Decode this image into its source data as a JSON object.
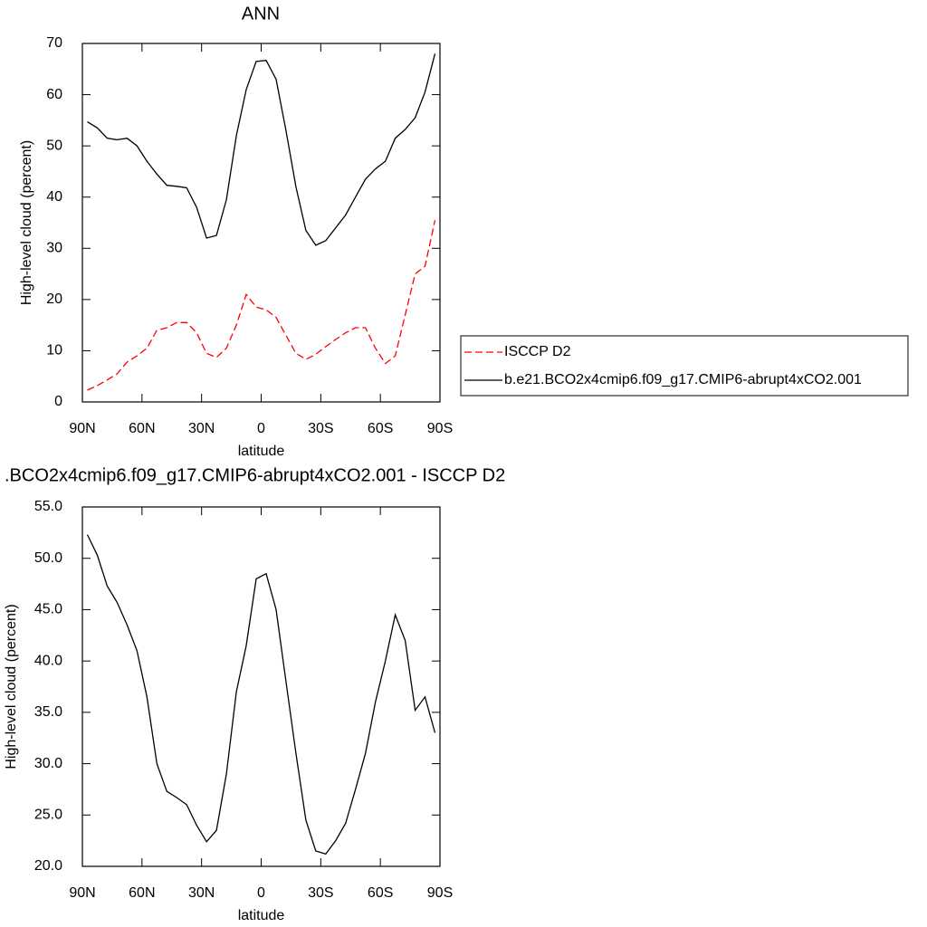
{
  "chart_data": [
    {
      "type": "line",
      "title": "ANN",
      "xlabel": "latitude",
      "ylabel": "High-level cloud (percent)",
      "x": [
        87.5,
        82.5,
        77.5,
        72.5,
        67.5,
        62.5,
        57.5,
        52.5,
        47.5,
        42.5,
        37.5,
        32.5,
        27.5,
        22.5,
        17.5,
        12.5,
        7.5,
        2.5,
        -2.5,
        -7.5,
        -12.5,
        -17.5,
        -22.5,
        -27.5,
        -32.5,
        -37.5,
        -42.5,
        -47.5,
        -52.5,
        -57.5,
        -62.5,
        -67.5,
        -72.5,
        -77.5,
        -82.5,
        -87.5
      ],
      "series": [
        {
          "name": "ISCCP D2",
          "color": "#ff0000",
          "line_style": "dashed",
          "values": [
            2.3,
            3.2,
            4.3,
            5.5,
            7.8,
            9,
            10.5,
            14,
            14.5,
            15.5,
            15.5,
            13.5,
            9.5,
            8.7,
            10.5,
            15,
            21,
            18.5,
            18,
            16.5,
            13,
            9.5,
            8.3,
            9.3,
            10.8,
            12.2,
            13.5,
            14.5,
            14.5,
            10.5,
            7.5,
            9,
            17,
            25,
            26.5,
            35.5
          ]
        },
        {
          "name": "b.e21.BCO2x4cmip6.f09_g17.CMIP6-abrupt4xCO2.001",
          "color": "#000000",
          "line_style": "solid",
          "values": [
            54.7,
            53.5,
            51.5,
            51.2,
            51.5,
            50,
            47,
            44.5,
            42.3,
            42.1,
            41.8,
            38,
            32,
            32.5,
            39.5,
            52,
            61,
            66.5,
            66.7,
            63,
            53,
            42,
            33.5,
            30.6,
            31.5,
            34,
            36.5,
            40,
            43.5,
            45.5,
            47,
            51.5,
            53.2,
            55.5,
            60.5,
            68
          ]
        }
      ],
      "xlim": [
        90,
        -90
      ],
      "xticks": [
        {
          "value": 90,
          "label": "90N"
        },
        {
          "value": 60,
          "label": "60N"
        },
        {
          "value": 30,
          "label": "30N"
        },
        0,
        {
          "value": -30,
          "label": "30S"
        },
        {
          "value": -60,
          "label": "60S"
        },
        {
          "value": -90,
          "label": "90S"
        }
      ],
      "ylim": [
        0,
        70
      ],
      "yticks": [
        0,
        10,
        20,
        30,
        40,
        50,
        60,
        70
      ],
      "grid": false,
      "legend": "right"
    },
    {
      "type": "line",
      "title": ".BCO2x4cmip6.f09_g17.CMIP6-abrupt4xCO2.001 - ISCCP D2",
      "xlabel": "latitude",
      "ylabel": "High-level cloud (percent)",
      "x": [
        87.5,
        82.5,
        77.5,
        72.5,
        67.5,
        62.5,
        57.5,
        52.5,
        47.5,
        42.5,
        37.5,
        32.5,
        27.5,
        22.5,
        17.5,
        12.5,
        7.5,
        2.5,
        -2.5,
        -7.5,
        -12.5,
        -17.5,
        -22.5,
        -27.5,
        -32.5,
        -37.5,
        -42.5,
        -47.5,
        -52.5,
        -57.5,
        -62.5,
        -67.5,
        -72.5,
        -77.5,
        -82.5,
        -87.5
      ],
      "color": "#000000",
      "values": [
        52.3,
        50.3,
        47.3,
        45.7,
        43.5,
        41,
        36.5,
        30,
        27.3,
        26.7,
        26,
        24,
        22.4,
        23.5,
        29,
        37,
        41.5,
        48,
        48.5,
        45,
        38,
        31,
        24.5,
        21.5,
        21.2,
        22.5,
        24.2,
        27.5,
        31,
        36,
        40,
        44.5,
        42,
        35.2,
        36.5,
        33
      ],
      "xlim": [
        90,
        -90
      ],
      "xticks": [
        {
          "value": 90,
          "label": "90N"
        },
        {
          "value": 60,
          "label": "60N"
        },
        {
          "value": 30,
          "label": "30N"
        },
        0,
        {
          "value": -30,
          "label": "30S"
        },
        {
          "value": -60,
          "label": "60S"
        },
        {
          "value": -90,
          "label": "90S"
        }
      ],
      "ylim": [
        20,
        55
      ],
      "yticks": [
        {
          "value": 20,
          "label": "20.0"
        },
        {
          "value": 25,
          "label": "25.0"
        },
        {
          "value": 30,
          "label": "30.0"
        },
        {
          "value": 35,
          "label": "35.0"
        },
        {
          "value": 40,
          "label": "40.0"
        },
        {
          "value": 45,
          "label": "45.0"
        },
        {
          "value": 50,
          "label": "50.0"
        },
        {
          "value": 55,
          "label": "55.0"
        }
      ],
      "grid": false
    }
  ]
}
